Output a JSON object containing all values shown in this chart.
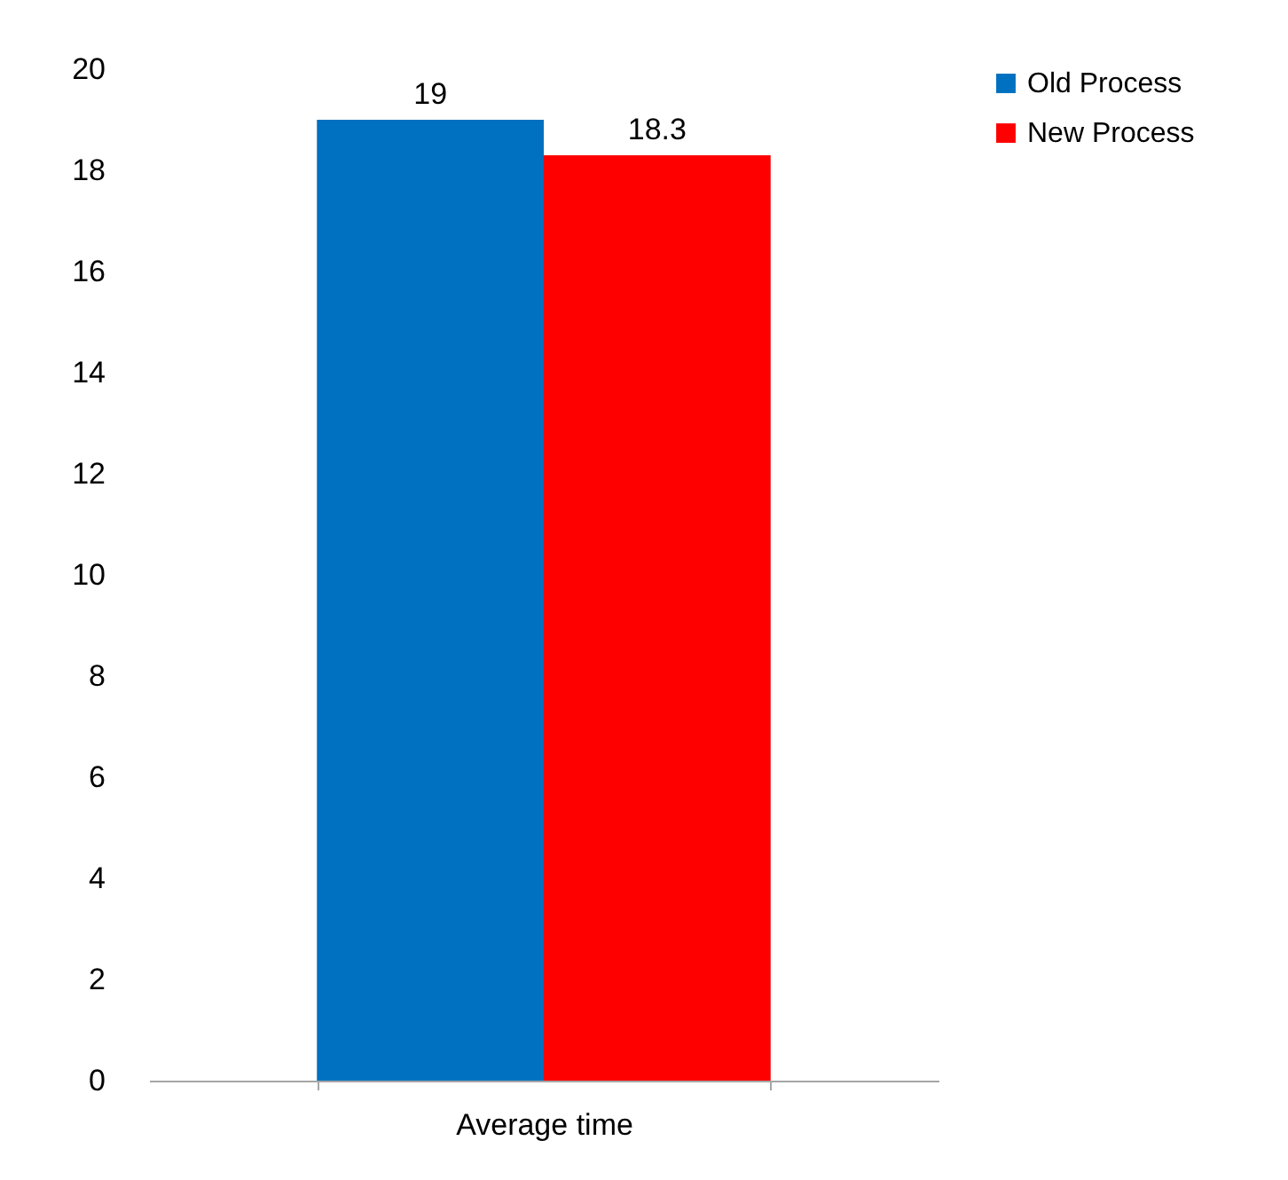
{
  "chart_data": {
    "type": "bar",
    "categories": [
      "Average time"
    ],
    "series": [
      {
        "name": "Old Process",
        "color": "#0070c0",
        "values": [
          19
        ]
      },
      {
        "name": "New Process",
        "color": "#ff0000",
        "values": [
          18.3
        ]
      }
    ],
    "ylim": [
      0,
      20
    ],
    "yticks": [
      0,
      2,
      4,
      6,
      8,
      10,
      12,
      14,
      16,
      18,
      20
    ],
    "grid": false,
    "legend": "right",
    "data_labels": true
  }
}
